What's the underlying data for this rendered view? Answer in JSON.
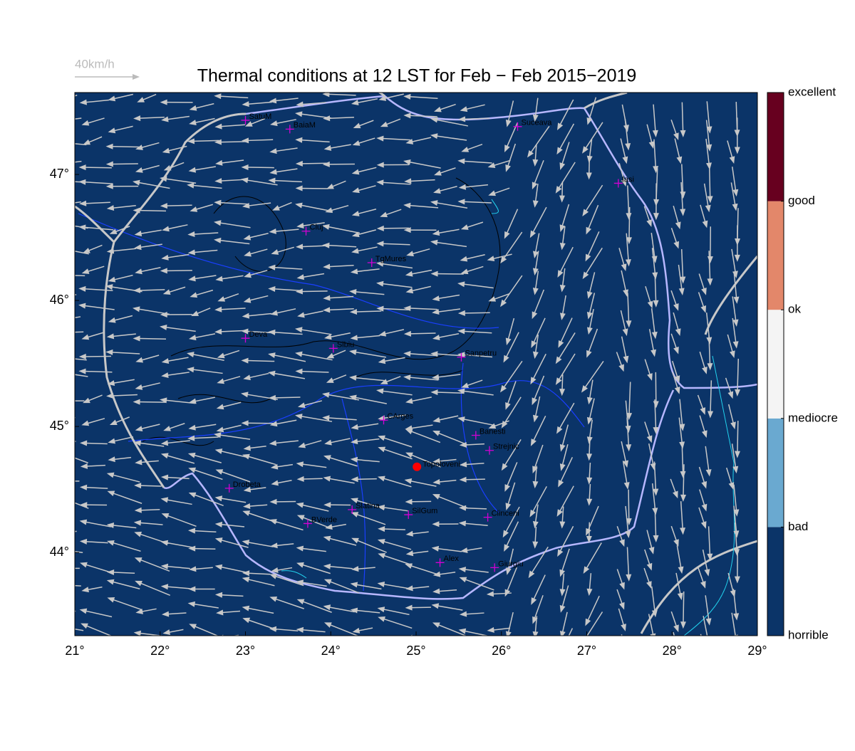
{
  "map": {
    "title": "Thermal conditions at 12 LST for Feb − Feb  2015−2019",
    "scale_label": "40km/h",
    "xlim": [
      21,
      29
    ],
    "ylim": [
      43.34,
      47.65
    ],
    "xticks": [
      {
        "value": 21,
        "label": "21°"
      },
      {
        "value": 22,
        "label": "22°"
      },
      {
        "value": 23,
        "label": "23°"
      },
      {
        "value": 24,
        "label": "24°"
      },
      {
        "value": 25,
        "label": "25°"
      },
      {
        "value": 26,
        "label": "26°"
      },
      {
        "value": 27,
        "label": "27°"
      },
      {
        "value": 28,
        "label": "28°"
      },
      {
        "value": 29,
        "label": "29°"
      }
    ],
    "yticks": [
      {
        "value": 44,
        "label": "44°"
      },
      {
        "value": 45,
        "label": "45°"
      },
      {
        "value": 46,
        "label": "46°"
      },
      {
        "value": 47,
        "label": "47°"
      }
    ],
    "background": "#0b3468",
    "cities": [
      {
        "name": "SatuM",
        "lon": 23.0,
        "lat": 47.43
      },
      {
        "name": "BaiaM",
        "lon": 23.52,
        "lat": 47.36
      },
      {
        "name": "Suceava",
        "lon": 26.19,
        "lat": 47.38
      },
      {
        "name": "Iasi",
        "lon": 27.37,
        "lat": 46.93
      },
      {
        "name": "Cluj",
        "lon": 23.71,
        "lat": 46.55
      },
      {
        "name": "TgMures",
        "lon": 24.48,
        "lat": 46.3
      },
      {
        "name": "Deva",
        "lon": 23.0,
        "lat": 45.7
      },
      {
        "name": "Sibiu",
        "lon": 24.03,
        "lat": 45.62
      },
      {
        "name": "Sanpetru",
        "lon": 25.53,
        "lat": 45.55
      },
      {
        "name": "CArges",
        "lon": 24.62,
        "lat": 45.05
      },
      {
        "name": "Banesti",
        "lon": 25.7,
        "lat": 44.93
      },
      {
        "name": "Strejnic",
        "lon": 25.86,
        "lat": 44.81
      },
      {
        "name": "Drobeta",
        "lon": 22.81,
        "lat": 44.51
      },
      {
        "name": "Slatina",
        "lon": 24.25,
        "lat": 44.34
      },
      {
        "name": "SilGum",
        "lon": 24.91,
        "lat": 44.3
      },
      {
        "name": "Clinceni",
        "lon": 25.84,
        "lat": 44.28
      },
      {
        "name": "BVerde",
        "lon": 23.73,
        "lat": 44.23
      },
      {
        "name": "Alex",
        "lon": 25.28,
        "lat": 43.92
      },
      {
        "name": "Giurgiu",
        "lon": 25.92,
        "lat": 43.88
      }
    ],
    "site": {
      "name": "Topoloveni",
      "lon": 25.01,
      "lat": 44.68,
      "color": "#ff0000"
    },
    "colorbar": {
      "labels": [
        "horrible",
        "bad",
        "mediocre",
        "ok",
        "good",
        "excellent"
      ],
      "colors": [
        "#0b3468",
        "#6aa9d0",
        "#f4f4f4",
        "#e3876a",
        "#67001f"
      ]
    }
  }
}
